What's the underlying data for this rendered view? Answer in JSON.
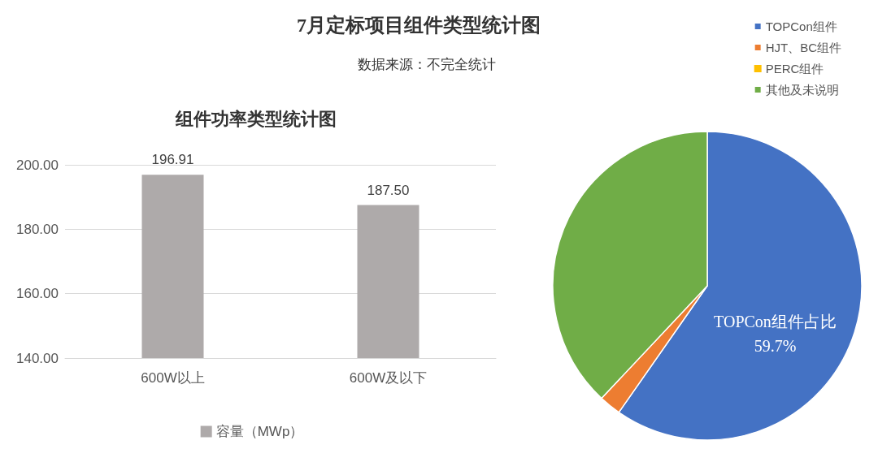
{
  "chart_data": [
    {
      "type": "pie",
      "title": "7月定标项目组件类型统计图",
      "subtitle": "数据来源：不完全统计",
      "categories": [
        "TOPCon组件",
        "HJT、BC组件",
        "PERC组件",
        "其他及未说明"
      ],
      "values": [
        59.7,
        2.3,
        0,
        38.0
      ],
      "colors": [
        "#4472c4",
        "#ed7d31",
        "#ffc000",
        "#70ad47"
      ],
      "value_labels": [
        "TOPCon组件占比\n59.7%",
        null,
        null,
        null
      ],
      "legend": "top right"
    },
    {
      "type": "bar",
      "title": "组件功率类型统计图",
      "categories": [
        "600W以上",
        "600W及以下"
      ],
      "series": [
        {
          "name": "容量（MWp）",
          "color": "#aeaaaa",
          "values": [
            196.91,
            187.5
          ]
        }
      ],
      "value_labels": [
        "196.91",
        "187.50"
      ],
      "ylim": [
        140,
        200
      ],
      "yticks": [
        {
          "value": 140,
          "label": "140.00"
        },
        {
          "value": 160,
          "label": "160.00"
        },
        {
          "value": 180,
          "label": "180.00"
        },
        {
          "value": 200,
          "label": "200.00"
        }
      ],
      "grid": "y",
      "legend": "bottom"
    }
  ]
}
